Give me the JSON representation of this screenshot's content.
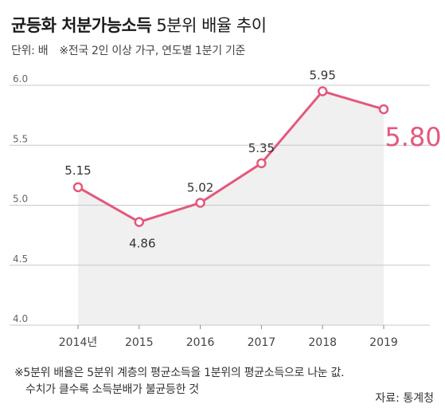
{
  "header": {
    "title_bold": "균등화 처분가능소득",
    "title_rest": "5분위 배율 추이",
    "unit_label": "단위: 배",
    "unit_note": "※전국 2인 이상 가구, 연도별 1분기 기준"
  },
  "footer": {
    "note_line1": "※5분위 배율은 5분위 계층의 평균소득을 1분위의 평균소득으로 나눈 값.",
    "note_line2": "수치가 클수록 소득분배가 불균등한 것",
    "source": "자료: 통계청"
  },
  "colors": {
    "line": "#e4587c",
    "highlight_text": "#e4587c",
    "plot_shade": "#f0f0f0",
    "gridline": "#c8c8c8",
    "axis_text": "#666666"
  },
  "chart_data": {
    "type": "line",
    "title": "균등화 처분가능소득 5분위 배율 추이",
    "xlabel": "",
    "ylabel": "",
    "categories": [
      "2014년",
      "2015",
      "2016",
      "2017",
      "2018",
      "2019"
    ],
    "series": [
      {
        "values": [
          5.15,
          4.86,
          5.02,
          5.35,
          5.95,
          5.8
        ]
      }
    ],
    "data_labels": [
      "5.15",
      "4.86",
      "5.02",
      "5.35",
      "5.95",
      "5.80"
    ],
    "highlight_index": 5,
    "ylim": [
      4.0,
      6.0
    ],
    "yticks": [
      "4.0",
      "4.5",
      "5.0",
      "5.5",
      "6.0"
    ],
    "grid": true,
    "area_fill_below_line": true
  }
}
